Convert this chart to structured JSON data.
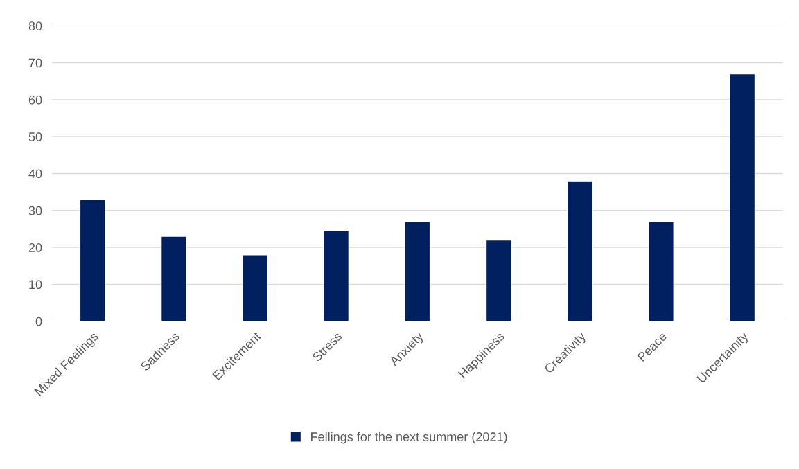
{
  "chart_data": {
    "type": "bar",
    "categories": [
      "Mixed Feelings",
      "Sadness",
      "Excitement",
      "Stress",
      "Anxiety",
      "Happiness",
      "Creativity",
      "Peace",
      "Uncertainity"
    ],
    "series": [
      {
        "name": "Fellings for the next summer (2021)",
        "color": "#002060",
        "values": [
          33,
          23,
          18,
          24.5,
          27,
          22,
          38,
          27,
          67
        ]
      }
    ],
    "ylim": [
      0,
      80
    ],
    "yticks": [
      0,
      10,
      20,
      30,
      40,
      50,
      60,
      70,
      80
    ],
    "grid": "y",
    "legend": "bottom"
  }
}
